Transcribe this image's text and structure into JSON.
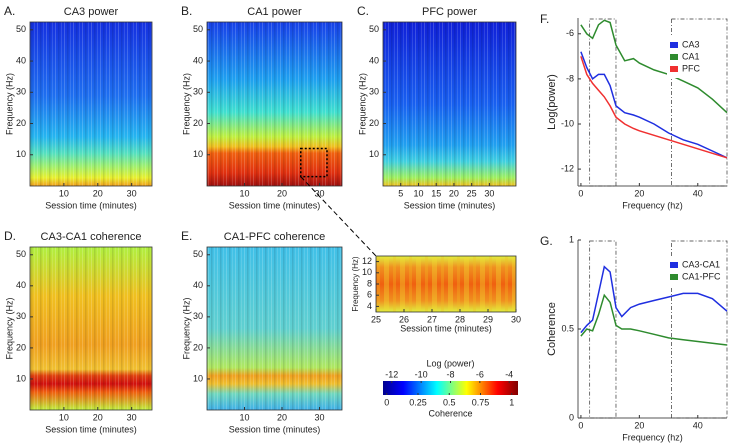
{
  "chart_data": [
    {
      "type": "heatmap",
      "label": "A.",
      "title": "CA3 power",
      "xlabel": "Session time (minutes)",
      "ylabel": "Frequency (Hz)",
      "xlim": [
        0,
        36
      ],
      "xticks": [
        10,
        20,
        30
      ],
      "ylim": [
        0,
        52.5
      ],
      "yticks": [
        10,
        20,
        30,
        40,
        50
      ]
    },
    {
      "type": "heatmap",
      "label": "B.",
      "title": "CA1 power",
      "xlabel": "Session time (minutes)",
      "ylabel": "Frequency (Hz)",
      "xlim": [
        0,
        36
      ],
      "xticks": [
        10,
        20,
        30
      ],
      "ylim": [
        0,
        52.5
      ],
      "yticks": [
        10,
        20,
        30,
        40,
        50
      ],
      "zoom_x": [
        25,
        32
      ],
      "zoom_y": [
        3,
        12
      ]
    },
    {
      "type": "heatmap",
      "label": "C.",
      "title": "PFC power",
      "xlabel": "Session time (minutes)",
      "ylabel": "Frequency (Hz)",
      "xlim": [
        0,
        37.5
      ],
      "xticks": [
        5,
        10,
        15,
        20,
        25,
        30
      ],
      "ylim": [
        0,
        52.5
      ],
      "yticks": [
        10,
        20,
        30,
        40,
        50
      ]
    },
    {
      "type": "heatmap",
      "label": "D.",
      "title": "CA3-CA1 coherence",
      "xlabel": "Session time (minutes)",
      "ylabel": "Frequency (Hz)",
      "xlim": [
        0,
        36
      ],
      "xticks": [
        10,
        20,
        30
      ],
      "ylim": [
        0,
        52.5
      ],
      "yticks": [
        10,
        20,
        30,
        40,
        50
      ]
    },
    {
      "type": "heatmap",
      "label": "E.",
      "title": "CA1-PFC coherence",
      "xlabel": "Session time (minutes)",
      "ylabel": "Frequency (Hz)",
      "xlim": [
        0,
        36
      ],
      "xticks": [
        10,
        20,
        30
      ],
      "ylim": [
        0,
        52.5
      ],
      "yticks": [
        10,
        20,
        30,
        40,
        50
      ]
    },
    {
      "type": "heatmap",
      "xlabel": "Session time (minutes)",
      "ylabel": "Frequency (Hz)",
      "xlim": [
        25,
        30
      ],
      "xticks": [
        25,
        26,
        27,
        28,
        29,
        30
      ],
      "ylim": [
        3,
        13
      ],
      "yticks": [
        4,
        6,
        8,
        10,
        12
      ]
    },
    {
      "type": "colorbar",
      "scales": [
        {
          "title": "Log (power)",
          "lim": [
            -12.6,
            -3.4
          ],
          "ticks": [
            -12,
            -10,
            -8,
            -6,
            -4
          ]
        },
        {
          "title": "Coherence",
          "lim": [
            -0.03,
            1.05
          ],
          "ticks": [
            0,
            0.25,
            0.5,
            0.75,
            1
          ]
        }
      ]
    },
    {
      "type": "line",
      "label": "F.",
      "xlabel": "Frequency (hz)",
      "ylabel": "Log(power)",
      "xlim": [
        -1,
        50
      ],
      "xticks": [
        0,
        20,
        40
      ],
      "ylim": [
        -12.75,
        -5.3
      ],
      "yticks": [
        -6,
        -8,
        -10,
        -12
      ],
      "legend": "upper right",
      "highlights": [
        [
          3,
          12
        ],
        [
          31,
          50
        ]
      ],
      "x": [
        0,
        2,
        4,
        6,
        8,
        10,
        12,
        15,
        18,
        20,
        25,
        30,
        35,
        40,
        45,
        50
      ],
      "series": [
        {
          "name": "CA3",
          "color": "#1f2fe0",
          "values": [
            -6.8,
            -7.5,
            -8.0,
            -7.8,
            -7.8,
            -8.3,
            -9.2,
            -9.5,
            -9.6,
            -9.7,
            -10.0,
            -10.4,
            -10.7,
            -10.9,
            -11.2,
            -11.5
          ]
        },
        {
          "name": "CA1",
          "color": "#2e8b2e",
          "values": [
            -5.6,
            -6.0,
            -6.2,
            -5.6,
            -5.4,
            -5.5,
            -6.5,
            -7.2,
            -7.1,
            -7.3,
            -7.6,
            -7.8,
            -8.1,
            -8.4,
            -8.9,
            -9.5
          ]
        },
        {
          "name": "PFC",
          "color": "#f03030",
          "values": [
            -7.0,
            -7.8,
            -8.2,
            -8.5,
            -8.8,
            -9.2,
            -9.7,
            -10.0,
            -10.2,
            -10.3,
            -10.5,
            -10.7,
            -10.9,
            -11.1,
            -11.3,
            -11.5
          ]
        }
      ]
    },
    {
      "type": "line",
      "label": "G.",
      "xlabel": "Frequency (hz)",
      "ylabel": "Coherence",
      "xlim": [
        -1,
        50
      ],
      "xticks": [
        0,
        20,
        40
      ],
      "ylim": [
        0,
        1
      ],
      "yticks": [
        0,
        0.5,
        1
      ],
      "legend": "upper right",
      "highlights": [
        [
          3,
          12
        ],
        [
          31,
          50
        ]
      ],
      "x": [
        0,
        2,
        4,
        6,
        8,
        10,
        12,
        14,
        17,
        20,
        25,
        30,
        35,
        40,
        45,
        50
      ],
      "series": [
        {
          "name": "CA3-CA1",
          "color": "#1f2fe0",
          "values": [
            0.48,
            0.52,
            0.55,
            0.7,
            0.85,
            0.82,
            0.62,
            0.57,
            0.62,
            0.64,
            0.66,
            0.68,
            0.7,
            0.7,
            0.67,
            0.6
          ]
        },
        {
          "name": "CA1-PFC",
          "color": "#2e8b2e",
          "values": [
            0.46,
            0.5,
            0.49,
            0.58,
            0.69,
            0.65,
            0.52,
            0.5,
            0.5,
            0.49,
            0.47,
            0.45,
            0.44,
            0.43,
            0.42,
            0.41
          ]
        }
      ]
    }
  ]
}
